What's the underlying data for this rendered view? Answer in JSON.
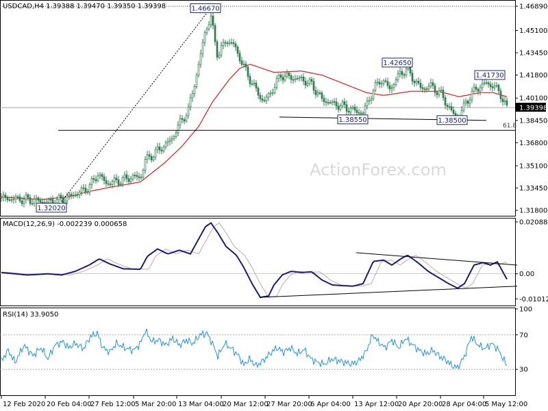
{
  "header": {
    "symbol": "USDCAD,H4",
    "ohlc": "1.39388 1.39470 1.39350 1.39398"
  },
  "watermark": "ActionForex.com",
  "colors": {
    "candle": "#2f7d4f",
    "sma": "#e21b1b",
    "trendline": "#000000",
    "macd": "#1a1a7a",
    "signal": "#c0a8a8",
    "rsi": "#1e90ff",
    "level_box": "#1a237e"
  },
  "chart_data": [
    {
      "id": "price",
      "type": "candlestick",
      "title": "USDCAD,H4 1.39388 1.39470 1.39350 1.39398",
      "ylim": [
        1.314,
        1.472
      ],
      "y_ticks": [
        "1.46890",
        "1.45100",
        "1.43450",
        "1.41800",
        "1.40100",
        "1.38450",
        "1.36800",
        "1.35100",
        "1.33450",
        "1.31800"
      ],
      "y_tick_values": [
        1.4689,
        1.451,
        1.4345,
        1.418,
        1.401,
        1.3845,
        1.368,
        1.351,
        1.3345,
        1.318
      ],
      "current_price": {
        "label": "1.39398",
        "value": 1.39398
      },
      "level_labels": [
        {
          "label": "1.46670",
          "value": 1.4667,
          "t": 300
        },
        {
          "label": "1.42650",
          "value": 1.4265,
          "t": 580
        },
        {
          "label": "1.41730",
          "value": 1.4173,
          "t": 715
        },
        {
          "label": "1.38550",
          "value": 1.3855,
          "t": 515
        },
        {
          "label": "1.38500",
          "value": 1.385,
          "t": 660
        },
        {
          "label": "1.32020",
          "value": 1.3202,
          "t": 75
        }
      ],
      "fib": {
        "label": "61.8",
        "value": 1.3772
      },
      "reference_lines": [
        1.4689,
        1.39398
      ],
      "sma_anchors": [
        [
          0,
          1.328
        ],
        [
          60,
          1.326
        ],
        [
          100,
          1.328
        ],
        [
          130,
          1.332
        ],
        [
          160,
          1.335
        ],
        [
          205,
          1.339
        ],
        [
          240,
          1.353
        ],
        [
          265,
          1.365
        ],
        [
          290,
          1.38
        ],
        [
          310,
          1.398
        ],
        [
          335,
          1.415
        ],
        [
          350,
          1.423
        ],
        [
          365,
          1.426
        ],
        [
          400,
          1.42
        ],
        [
          440,
          1.421
        ],
        [
          470,
          1.418
        ],
        [
          510,
          1.41
        ],
        [
          535,
          1.405
        ],
        [
          560,
          1.403
        ],
        [
          600,
          1.406
        ],
        [
          640,
          1.406
        ],
        [
          670,
          1.402
        ],
        [
          700,
          1.405
        ],
        [
          720,
          1.405
        ],
        [
          740,
          1.402
        ]
      ],
      "close_anchors": [
        [
          2,
          1.327
        ],
        [
          40,
          1.326
        ],
        [
          70,
          1.324
        ],
        [
          90,
          1.326
        ],
        [
          110,
          1.33
        ],
        [
          130,
          1.335
        ],
        [
          143,
          1.345
        ],
        [
          155,
          1.338
        ],
        [
          175,
          1.34
        ],
        [
          195,
          1.343
        ],
        [
          205,
          1.342
        ],
        [
          212,
          1.355
        ],
        [
          230,
          1.362
        ],
        [
          250,
          1.37
        ],
        [
          262,
          1.382
        ],
        [
          275,
          1.392
        ],
        [
          290,
          1.425
        ],
        [
          300,
          1.452
        ],
        [
          308,
          1.46
        ],
        [
          318,
          1.432
        ],
        [
          330,
          1.444
        ],
        [
          342,
          1.44
        ],
        [
          355,
          1.425
        ],
        [
          370,
          1.41
        ],
        [
          385,
          1.398
        ],
        [
          395,
          1.405
        ],
        [
          410,
          1.418
        ],
        [
          425,
          1.416
        ],
        [
          440,
          1.415
        ],
        [
          455,
          1.411
        ],
        [
          470,
          1.4
        ],
        [
          485,
          1.397
        ],
        [
          500,
          1.395
        ],
        [
          515,
          1.392
        ],
        [
          530,
          1.39
        ],
        [
          540,
          1.402
        ],
        [
          555,
          1.415
        ],
        [
          570,
          1.408
        ],
        [
          585,
          1.42
        ],
        [
          595,
          1.422
        ],
        [
          605,
          1.414
        ],
        [
          615,
          1.408
        ],
        [
          630,
          1.41
        ],
        [
          645,
          1.403
        ],
        [
          660,
          1.39
        ],
        [
          670,
          1.387
        ],
        [
          680,
          1.398
        ],
        [
          695,
          1.408
        ],
        [
          710,
          1.412
        ],
        [
          720,
          1.41
        ],
        [
          730,
          1.405
        ],
        [
          740,
          1.393
        ]
      ],
      "trendlines": [
        {
          "style": "dotted",
          "from": [
            90,
            1.3245
          ],
          "to": [
            302,
            1.464
          ]
        },
        {
          "style": "solid",
          "from": [
            408,
            1.387
          ],
          "to": [
            710,
            1.3845
          ]
        },
        {
          "style": "solid",
          "from": [
            85,
            1.3772
          ],
          "to": [
            752,
            1.3772
          ]
        }
      ]
    },
    {
      "id": "macd",
      "type": "line",
      "title": "MACD(12,26,9) -0.002239 0.000658",
      "ylim": [
        -0.0128,
        0.022
      ],
      "y_ticks": [
        "0.020884",
        "0.00",
        "-0.010121"
      ],
      "y_tick_values": [
        0.020884,
        0.0,
        -0.010121
      ],
      "reference_line": 0.0,
      "macd_anchors": [
        [
          2,
          0.0005
        ],
        [
          40,
          -0.0005
        ],
        [
          70,
          0.0
        ],
        [
          90,
          -0.0005
        ],
        [
          110,
          0.001
        ],
        [
          130,
          0.0035
        ],
        [
          145,
          0.006
        ],
        [
          160,
          0.004
        ],
        [
          180,
          0.002
        ],
        [
          205,
          0.0018
        ],
        [
          215,
          0.007
        ],
        [
          230,
          0.01
        ],
        [
          245,
          0.008
        ],
        [
          262,
          0.0095
        ],
        [
          278,
          0.008
        ],
        [
          290,
          0.014
        ],
        [
          300,
          0.019
        ],
        [
          308,
          0.0205
        ],
        [
          318,
          0.0165
        ],
        [
          330,
          0.011
        ],
        [
          345,
          0.0075
        ],
        [
          355,
          0.003
        ],
        [
          368,
          -0.004
        ],
        [
          380,
          -0.0095
        ],
        [
          392,
          -0.009
        ],
        [
          400,
          -0.0045
        ],
        [
          412,
          -0.0005
        ],
        [
          425,
          0.001
        ],
        [
          440,
          0.0005
        ],
        [
          455,
          0.0008
        ],
        [
          470,
          -0.0025
        ],
        [
          485,
          -0.0045
        ],
        [
          500,
          -0.0048
        ],
        [
          515,
          -0.005
        ],
        [
          530,
          -0.004
        ],
        [
          545,
          0.005
        ],
        [
          560,
          0.0055
        ],
        [
          572,
          0.0035
        ],
        [
          585,
          0.006
        ],
        [
          595,
          0.0075
        ],
        [
          610,
          0.0045
        ],
        [
          625,
          0.001
        ],
        [
          640,
          -0.0015
        ],
        [
          655,
          -0.004
        ],
        [
          668,
          -0.0058
        ],
        [
          678,
          -0.004
        ],
        [
          692,
          0.0035
        ],
        [
          705,
          0.0045
        ],
        [
          716,
          0.0035
        ],
        [
          726,
          0.0048
        ],
        [
          740,
          -0.0022
        ]
      ],
      "trendlines": [
        {
          "style": "solid",
          "from": [
            520,
            0.0085
          ],
          "to": [
            755,
            0.0035
          ]
        },
        {
          "style": "solid",
          "from": [
            380,
            -0.0095
          ],
          "to": [
            755,
            -0.005
          ]
        }
      ]
    },
    {
      "id": "rsi",
      "type": "line",
      "title": "RSI(14) 33.9050",
      "ylim": [
        0,
        100
      ],
      "y_ticks": [
        "100",
        "70",
        "30"
      ],
      "y_tick_values": [
        100,
        70,
        30
      ],
      "levels": [
        70,
        30
      ],
      "rsi_anchors": [
        [
          2,
          40
        ],
        [
          12,
          52
        ],
        [
          22,
          38
        ],
        [
          35,
          58
        ],
        [
          48,
          46
        ],
        [
          60,
          55
        ],
        [
          70,
          42
        ],
        [
          80,
          58
        ],
        [
          92,
          62
        ],
        [
          100,
          55
        ],
        [
          110,
          60
        ],
        [
          122,
          54
        ],
        [
          132,
          68
        ],
        [
          142,
          72
        ],
        [
          150,
          55
        ],
        [
          160,
          50
        ],
        [
          170,
          60
        ],
        [
          182,
          55
        ],
        [
          195,
          52
        ],
        [
          205,
          60
        ],
        [
          212,
          75
        ],
        [
          222,
          62
        ],
        [
          232,
          64
        ],
        [
          242,
          58
        ],
        [
          252,
          66
        ],
        [
          262,
          58
        ],
        [
          272,
          64
        ],
        [
          282,
          60
        ],
        [
          292,
          70
        ],
        [
          302,
          72
        ],
        [
          310,
          60
        ],
        [
          318,
          45
        ],
        [
          328,
          60
        ],
        [
          338,
          54
        ],
        [
          348,
          46
        ],
        [
          356,
          35
        ],
        [
          364,
          42
        ],
        [
          374,
          34
        ],
        [
          384,
          40
        ],
        [
          394,
          48
        ],
        [
          404,
          55
        ],
        [
          414,
          50
        ],
        [
          424,
          55
        ],
        [
          434,
          48
        ],
        [
          444,
          53
        ],
        [
          454,
          42
        ],
        [
          464,
          38
        ],
        [
          474,
          36
        ],
        [
          484,
          42
        ],
        [
          494,
          40
        ],
        [
          504,
          38
        ],
        [
          514,
          36
        ],
        [
          524,
          40
        ],
        [
          534,
          50
        ],
        [
          544,
          70
        ],
        [
          552,
          62
        ],
        [
          562,
          55
        ],
        [
          572,
          64
        ],
        [
          582,
          55
        ],
        [
          592,
          66
        ],
        [
          600,
          60
        ],
        [
          612,
          52
        ],
        [
          622,
          48
        ],
        [
          632,
          52
        ],
        [
          642,
          45
        ],
        [
          652,
          40
        ],
        [
          660,
          34
        ],
        [
          668,
          32
        ],
        [
          678,
          45
        ],
        [
          688,
          68
        ],
        [
          698,
          58
        ],
        [
          708,
          54
        ],
        [
          718,
          60
        ],
        [
          728,
          52
        ],
        [
          740,
          34
        ]
      ]
    }
  ],
  "x_axis": {
    "labels": [
      {
        "text": "12 Feb 2020",
        "t": 2
      },
      {
        "text": "20 Feb 04:00",
        "t": 66
      },
      {
        "text": "27 Feb 12:00",
        "t": 130
      },
      {
        "text": "5 Mar 20:00",
        "t": 195
      },
      {
        "text": "13 Mar 04:00",
        "t": 258
      },
      {
        "text": "20 Mar 12:00",
        "t": 323
      },
      {
        "text": "27 Mar 20:00",
        "t": 387
      },
      {
        "text": "6 Apr 04:00",
        "t": 451
      },
      {
        "text": "13 Apr 12:00",
        "t": 515
      },
      {
        "text": "20 Apr 20:00",
        "t": 579
      },
      {
        "text": "28 Apr 04:00",
        "t": 643
      },
      {
        "text": "5 May 12:00",
        "t": 706
      }
    ]
  }
}
